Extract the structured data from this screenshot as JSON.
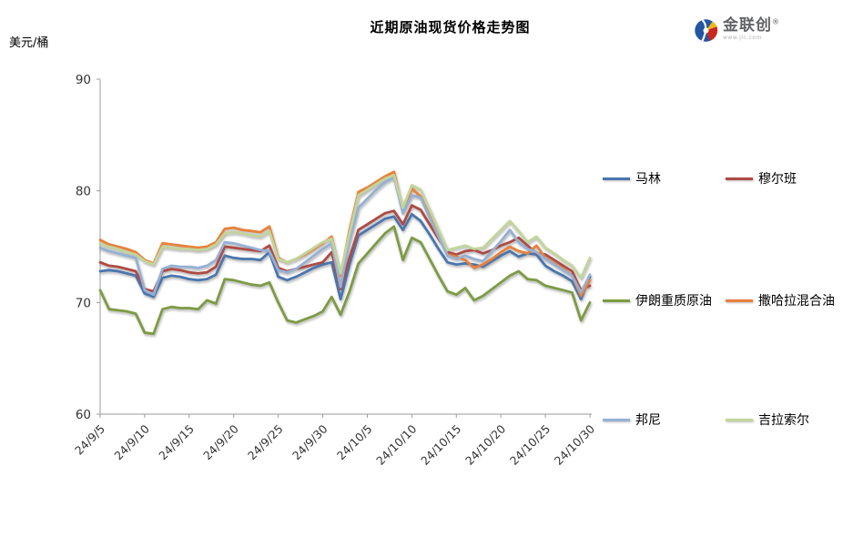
{
  "chart": {
    "title": "近期原油现货价格走势图",
    "unit_label": "美元/桶"
  },
  "logo": {
    "brand": "金联创",
    "reg": "®",
    "url": "www.jlc.com"
  },
  "chart_data": {
    "type": "line",
    "title": "近期原油现货价格走势图",
    "ylabel": "美元/桶",
    "ylim": [
      60,
      90
    ],
    "yticks": [
      60,
      70,
      80,
      90
    ],
    "grid": false,
    "legend_position": "right",
    "x_tick_interval": 5,
    "x_ticks_shown": [
      "24/9/5",
      "24/9/10",
      "24/9/15",
      "24/9/20",
      "24/9/25",
      "24/9/30",
      "24/10/5",
      "24/10/10",
      "24/10/15",
      "24/10/20",
      "24/10/25",
      "24/10/30"
    ],
    "x": [
      "24/9/5",
      "24/9/6",
      "24/9/7",
      "24/9/8",
      "24/9/9",
      "24/9/10",
      "24/9/11",
      "24/9/12",
      "24/9/13",
      "24/9/14",
      "24/9/15",
      "24/9/16",
      "24/9/17",
      "24/9/18",
      "24/9/19",
      "24/9/20",
      "24/9/21",
      "24/9/22",
      "24/9/23",
      "24/9/24",
      "24/9/25",
      "24/9/26",
      "24/9/27",
      "24/9/28",
      "24/9/29",
      "24/9/30",
      "24/10/1",
      "24/10/2",
      "24/10/3",
      "24/10/4",
      "24/10/5",
      "24/10/6",
      "24/10/7",
      "24/10/8",
      "24/10/9",
      "24/10/10",
      "24/10/11",
      "24/10/12",
      "24/10/13",
      "24/10/14",
      "24/10/15",
      "24/10/16",
      "24/10/17",
      "24/10/18",
      "24/10/19",
      "24/10/20",
      "24/10/21",
      "24/10/22",
      "24/10/23",
      "24/10/24",
      "24/10/25",
      "24/10/26",
      "24/10/27",
      "24/10/28",
      "24/10/29",
      "24/10/30"
    ],
    "series": [
      {
        "name": "马林",
        "color": "#4A76AE",
        "values": [
          72.8,
          72.9,
          72.8,
          72.6,
          72.4,
          70.8,
          70.5,
          72.2,
          72.4,
          72.3,
          72.1,
          72.0,
          72.1,
          72.5,
          74.2,
          74.0,
          73.9,
          73.9,
          73.8,
          74.5,
          72.3,
          72.0,
          72.3,
          72.7,
          73.1,
          73.4,
          73.6,
          70.3,
          73.4,
          76.0,
          76.5,
          77.0,
          77.5,
          77.7,
          76.5,
          77.9,
          77.3,
          76.1,
          74.8,
          73.6,
          73.4,
          73.5,
          73.4,
          73.2,
          73.7,
          74.2,
          74.6,
          74.1,
          74.4,
          74.3,
          73.3,
          72.8,
          72.4,
          71.9,
          70.3,
          72.3
        ]
      },
      {
        "name": "穆尔班",
        "color": "#AE4B45",
        "values": [
          73.6,
          73.3,
          73.2,
          73.0,
          72.8,
          71.2,
          71.0,
          72.8,
          73.0,
          72.9,
          72.7,
          72.6,
          72.7,
          73.2,
          75.0,
          74.9,
          74.8,
          74.7,
          74.6,
          75.1,
          73.1,
          72.8,
          73.0,
          73.2,
          73.4,
          73.6,
          74.5,
          71.2,
          74.0,
          76.5,
          77.0,
          77.5,
          78.0,
          78.2,
          77.0,
          78.7,
          78.3,
          77.0,
          75.7,
          74.5,
          74.3,
          74.6,
          74.7,
          74.4,
          74.7,
          75.1,
          75.4,
          75.8,
          75.1,
          74.4,
          74.3,
          73.8,
          73.3,
          72.8,
          71.1,
          71.5
        ]
      },
      {
        "name": "伊朗重质原油",
        "color": "#7D9B44",
        "values": [
          71.1,
          69.4,
          69.3,
          69.2,
          69.0,
          67.3,
          67.2,
          69.4,
          69.6,
          69.5,
          69.5,
          69.4,
          70.2,
          69.9,
          72.1,
          72.0,
          71.8,
          71.6,
          71.5,
          71.8,
          70.0,
          68.4,
          68.2,
          68.5,
          68.8,
          69.2,
          70.5,
          68.9,
          71.0,
          73.5,
          74.4,
          75.3,
          76.2,
          76.8,
          73.8,
          75.8,
          75.4,
          73.9,
          72.4,
          71.0,
          70.7,
          71.3,
          70.2,
          70.6,
          71.2,
          71.8,
          72.4,
          72.8,
          72.1,
          72.0,
          71.5,
          71.3,
          71.1,
          70.9,
          68.4,
          70.0
        ]
      },
      {
        "name": "撒哈拉混合油",
        "color": "#E8813B",
        "values": [
          75.6,
          75.2,
          75.0,
          74.8,
          74.5,
          73.8,
          73.5,
          75.3,
          75.2,
          75.1,
          75.0,
          74.9,
          75.0,
          75.4,
          76.6,
          76.7,
          76.5,
          76.4,
          76.3,
          76.8,
          74.0,
          73.6,
          73.9,
          74.3,
          74.8,
          75.3,
          75.9,
          72.4,
          76.5,
          79.9,
          80.3,
          80.8,
          81.3,
          81.7,
          78.3,
          80.2,
          79.5,
          77.8,
          76.0,
          74.3,
          74.1,
          73.8,
          73.1,
          73.4,
          73.9,
          74.5,
          75.0,
          74.6,
          74.4,
          75.1,
          74.0,
          73.5,
          73.0,
          72.4,
          70.6,
          72.0
        ]
      },
      {
        "name": "邦尼",
        "color": "#95B1D4",
        "values": [
          74.9,
          74.6,
          74.4,
          74.2,
          74.0,
          71.1,
          70.7,
          73.0,
          73.3,
          73.2,
          73.2,
          73.1,
          73.3,
          73.8,
          75.4,
          75.3,
          75.1,
          74.9,
          74.7,
          74.6,
          72.9,
          72.7,
          73.0,
          73.6,
          74.2,
          74.8,
          75.3,
          71.4,
          75.5,
          78.5,
          79.3,
          80.1,
          80.8,
          81.2,
          78.0,
          79.6,
          79.4,
          77.6,
          75.9,
          74.2,
          73.9,
          74.2,
          73.9,
          73.7,
          74.6,
          75.5,
          76.5,
          75.4,
          74.8,
          74.5,
          73.9,
          73.4,
          72.9,
          72.4,
          70.9,
          72.5
        ]
      },
      {
        "name": "吉拉索尔",
        "color": "#C2D59B",
        "values": [
          75.3,
          75.0,
          74.8,
          74.5,
          74.3,
          73.7,
          73.4,
          75.0,
          74.9,
          74.8,
          74.8,
          74.7,
          74.8,
          75.2,
          76.2,
          76.3,
          76.2,
          76.0,
          75.9,
          76.4,
          73.9,
          73.6,
          73.9,
          74.4,
          74.9,
          75.4,
          75.7,
          72.6,
          76.2,
          79.6,
          80.1,
          80.6,
          81.1,
          81.4,
          78.5,
          80.5,
          80.1,
          78.3,
          76.5,
          74.7,
          74.9,
          75.1,
          74.8,
          74.9,
          75.7,
          76.5,
          77.3,
          76.4,
          75.4,
          75.9,
          74.9,
          74.4,
          73.8,
          73.3,
          72.2,
          74.0
        ]
      }
    ]
  }
}
